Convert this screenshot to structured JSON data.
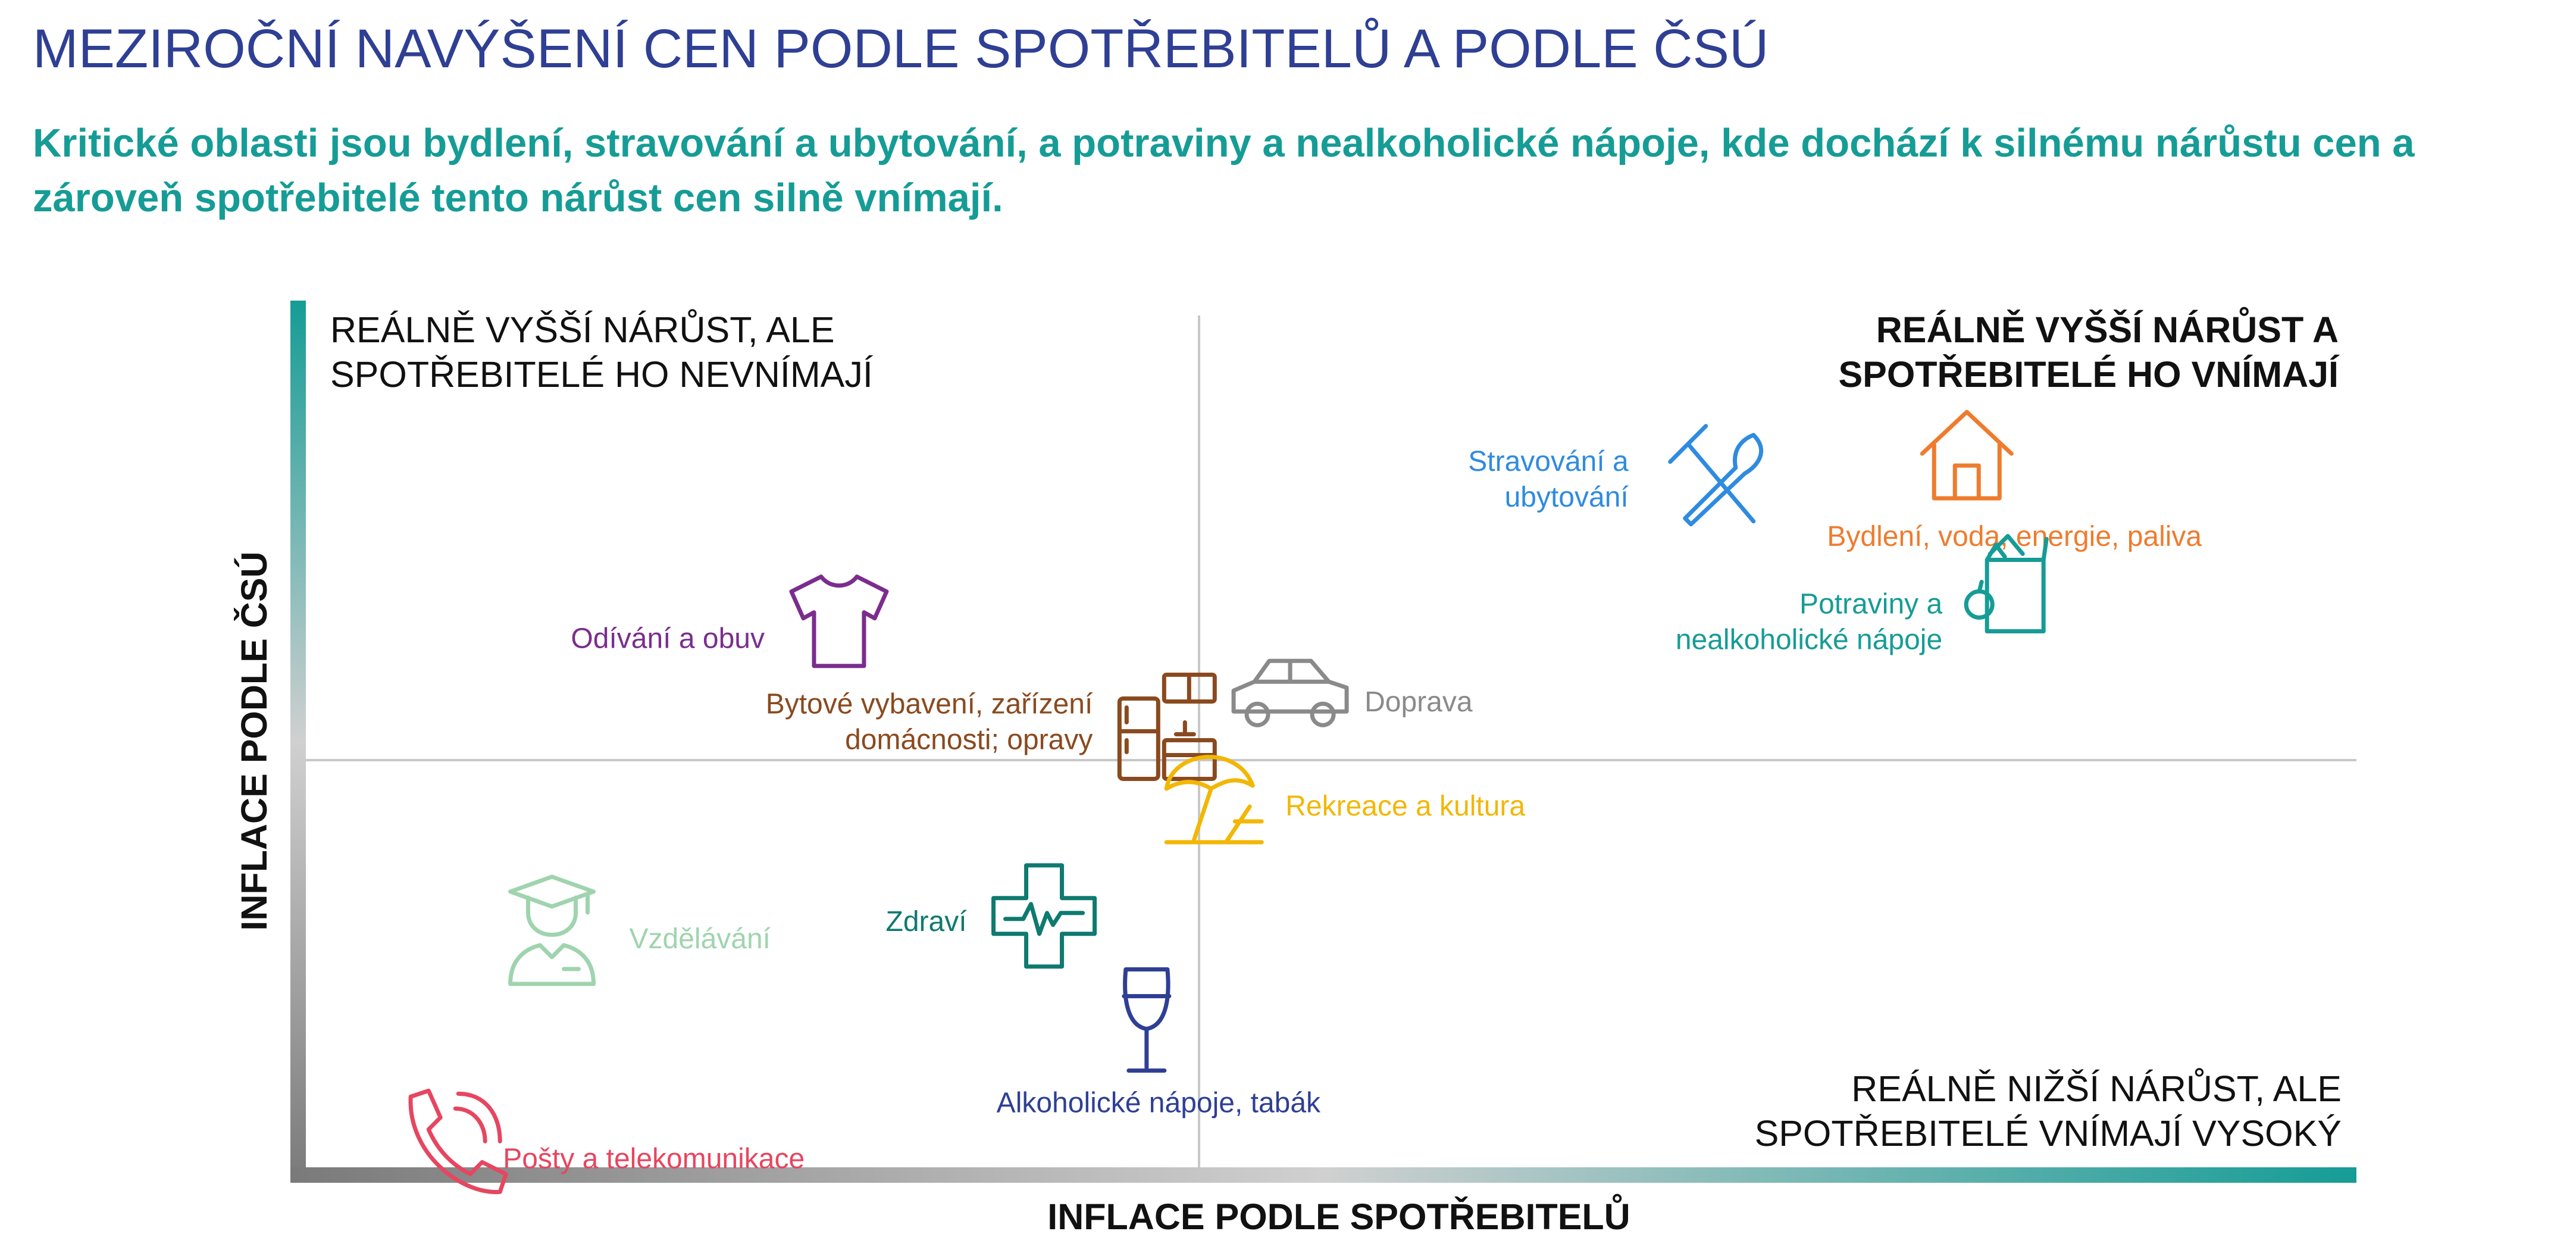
{
  "title": "MEZIROČNÍ NAVÝŠENÍ CEN PODLE SPOTŘEBITELŮ A PODLE ČSÚ",
  "subtitle": "Kritické oblasti jsou bydlení, stravování a ubytování, a potraviny a nealkoholické nápoje, kde dochází k silnému nárůstu cen a zároveň spotřebitelé tento nárůst cen silně vnímají.",
  "chart_data": {
    "type": "scatter",
    "xlabel": "INFLACE PODLE SPOTŘEBITELŮ",
    "ylabel": "INFLACE PODLE ČSÚ",
    "quadrants": {
      "top_left": [
        "REÁLNĚ VYŠŠÍ NÁRŮST, ALE",
        "SPOTŘEBITELÉ HO NEVNÍMAJÍ"
      ],
      "top_right": [
        "REÁLNĚ VYŠŠÍ NÁRŮST A",
        "SPOTŘEBITELÉ HO VNÍMAJÍ"
      ],
      "bottom_right": [
        "REÁLNĚ NIŽŠÍ NÁRŮST, ALE",
        "SPOTŘEBITELÉ VNÍMAJÍ VYSOKÝ"
      ]
    },
    "points": [
      {
        "label": [
          "Stravování a",
          "ubytování"
        ],
        "x": 0.69,
        "y": 0.79,
        "color": "#2f8be0",
        "icon": "fork-knife-icon"
      },
      {
        "label": [
          "Bydlení, voda, energie, paliva"
        ],
        "x": 0.81,
        "y": 0.82,
        "color": "#ee7c2e",
        "icon": "house-icon"
      },
      {
        "label": [
          "Potraviny a",
          "nealkoholické nápoje"
        ],
        "x": 0.83,
        "y": 0.67,
        "color": "#169c96",
        "icon": "grocery-bag-icon"
      },
      {
        "label": [
          "Odívání a obuv"
        ],
        "x": 0.26,
        "y": 0.63,
        "color": "#7b2d8e",
        "icon": "t-shirt-icon"
      },
      {
        "label": [
          "Doprava"
        ],
        "x": 0.48,
        "y": 0.55,
        "color": "#8a8a8a",
        "icon": "car-icon"
      },
      {
        "label": [
          "Bytové vybavení, zařízení",
          "domácnosti; opravy"
        ],
        "x": 0.42,
        "y": 0.51,
        "color": "#8a4a1f",
        "icon": "kitchen-icon"
      },
      {
        "label": [
          "Rekreace a kultura"
        ],
        "x": 0.44,
        "y": 0.43,
        "color": "#f2b705",
        "icon": "beach-umbrella-icon"
      },
      {
        "label": [
          "Vzdělávání"
        ],
        "x": 0.12,
        "y": 0.27,
        "color": "#9fd4ae",
        "icon": "graduate-icon"
      },
      {
        "label": [
          "Zdraví"
        ],
        "x": 0.36,
        "y": 0.29,
        "color": "#0e7a70",
        "icon": "medical-cross-icon"
      },
      {
        "label": [
          "Alkoholické nápoje, tabák"
        ],
        "x": 0.41,
        "y": 0.17,
        "color": "#2e3f94",
        "icon": "wine-glass-icon"
      },
      {
        "label": [
          "Pošty a telekomunikace"
        ],
        "x": 0.07,
        "y": 0.03,
        "color": "#e64660",
        "icon": "phone-icon"
      }
    ]
  }
}
